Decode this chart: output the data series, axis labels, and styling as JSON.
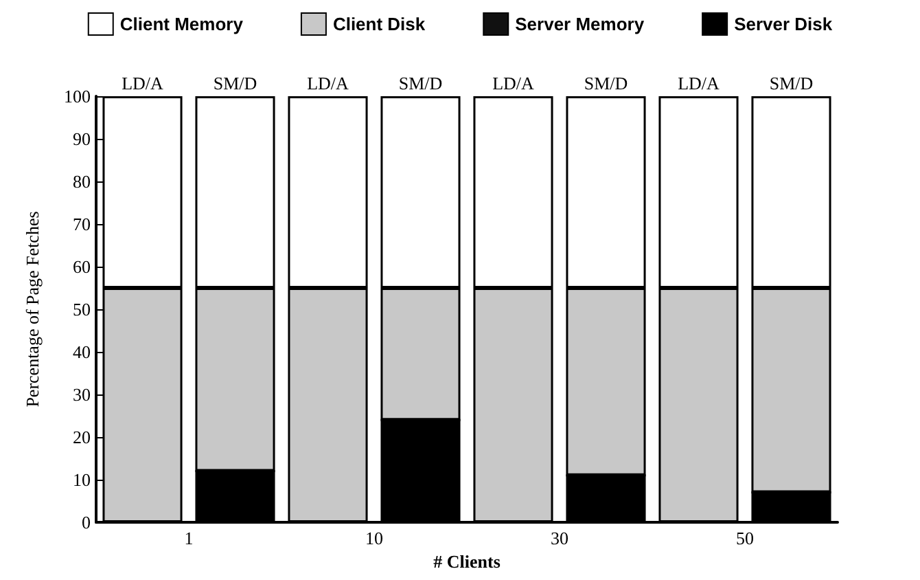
{
  "chart_data": {
    "type": "bar",
    "stacked": true,
    "xlabel": "# Clients",
    "ylabel": "Percentage of Page Fetches",
    "categories": [
      "LD/A",
      "SM/D",
      "LD/A",
      "SM/D",
      "LD/A",
      "SM/D",
      "LD/A",
      "SM/D"
    ],
    "series": [
      {
        "name": "Server Disk",
        "color": "#000000",
        "values": [
          0,
          12,
          0,
          24,
          0,
          11,
          0,
          7
        ]
      },
      {
        "name": "Server Memory",
        "color": "#111111",
        "values": [
          0,
          0,
          0,
          0,
          0,
          0,
          0,
          0
        ]
      },
      {
        "name": "Client Disk",
        "color": "#c8c8c8",
        "values": [
          55,
          43,
          55,
          31,
          55,
          44,
          55,
          48
        ]
      },
      {
        "name": "Client Memory",
        "color": "#ffffff",
        "values": [
          45,
          45,
          45,
          45,
          45,
          45,
          45,
          45
        ]
      }
    ],
    "annotations": [
      "1",
      "10",
      "30",
      "50"
    ],
    "ylim": [
      0,
      100
    ],
    "yticks": [
      0,
      10,
      20,
      30,
      40,
      50,
      60,
      70,
      80,
      90,
      100
    ],
    "grid": false,
    "legend": "top"
  }
}
